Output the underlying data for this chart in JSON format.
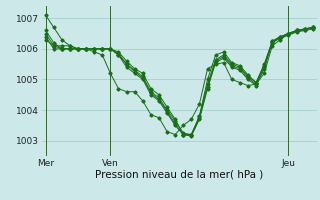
{
  "background_color": "#cce8e8",
  "grid_color": "#99cccc",
  "line_color": "#1a6e1a",
  "marker_color": "#1a6e1a",
  "xlabel": "Pression niveau de la mer( hPa )",
  "xlabel_fontsize": 7.5,
  "ylim": [
    1002.5,
    1007.4
  ],
  "yticks": [
    1003,
    1004,
    1005,
    1006,
    1007
  ],
  "xtick_labels": [
    "Mer",
    "Ven",
    "Jeu"
  ],
  "xtick_positions": [
    0,
    8,
    30
  ],
  "vline_positions": [
    0,
    8,
    30
  ],
  "series": [
    [
      1007.1,
      1006.7,
      1006.3,
      1006.1,
      1006.0,
      1006.0,
      1005.9,
      1005.8,
      1005.2,
      1004.7,
      1004.6,
      1004.6,
      1004.3,
      1003.85,
      1003.75,
      1003.3,
      1003.2,
      1003.5,
      1003.7,
      1004.2,
      1005.35,
      1005.5,
      1005.55,
      1005.0,
      1004.9,
      1004.8,
      1004.85,
      1005.2,
      1006.1,
      1006.3,
      1006.5,
      1006.6,
      1006.65,
      1006.7
    ],
    [
      1006.6,
      1006.2,
      1006.0,
      1006.0,
      1006.0,
      1006.0,
      1006.0,
      1006.0,
      1006.0,
      1005.8,
      1005.5,
      1005.3,
      1005.1,
      1004.6,
      1004.4,
      1004.0,
      1003.65,
      1003.25,
      1003.2,
      1003.8,
      1005.0,
      1005.8,
      1005.9,
      1005.55,
      1005.45,
      1005.15,
      1004.9,
      1005.5,
      1006.25,
      1006.4,
      1006.5,
      1006.6,
      1006.65,
      1006.7
    ],
    [
      1006.5,
      1006.1,
      1006.0,
      1006.0,
      1006.0,
      1006.0,
      1006.0,
      1006.0,
      1006.0,
      1005.8,
      1005.4,
      1005.2,
      1005.0,
      1004.5,
      1004.3,
      1003.9,
      1003.5,
      1003.2,
      1003.15,
      1003.7,
      1004.7,
      1005.55,
      1005.7,
      1005.4,
      1005.3,
      1005.0,
      1004.8,
      1005.35,
      1006.2,
      1006.35,
      1006.45,
      1006.55,
      1006.6,
      1006.65
    ],
    [
      1006.4,
      1006.0,
      1006.0,
      1006.0,
      1006.0,
      1006.0,
      1006.0,
      1006.0,
      1006.0,
      1005.85,
      1005.5,
      1005.25,
      1005.05,
      1004.55,
      1004.35,
      1003.95,
      1003.55,
      1003.2,
      1003.18,
      1003.75,
      1004.75,
      1005.6,
      1005.75,
      1005.45,
      1005.35,
      1005.05,
      1004.85,
      1005.4,
      1006.22,
      1006.37,
      1006.47,
      1006.57,
      1006.62,
      1006.67
    ],
    [
      1006.3,
      1006.1,
      1006.1,
      1006.1,
      1006.0,
      1006.0,
      1006.0,
      1006.0,
      1006.0,
      1005.9,
      1005.6,
      1005.35,
      1005.2,
      1004.7,
      1004.5,
      1004.1,
      1003.7,
      1003.2,
      1003.2,
      1003.8,
      1004.85,
      1005.65,
      1005.8,
      1005.5,
      1005.4,
      1005.1,
      1004.9,
      1005.45,
      1006.25,
      1006.4,
      1006.5,
      1006.6,
      1006.65,
      1006.7
    ]
  ]
}
